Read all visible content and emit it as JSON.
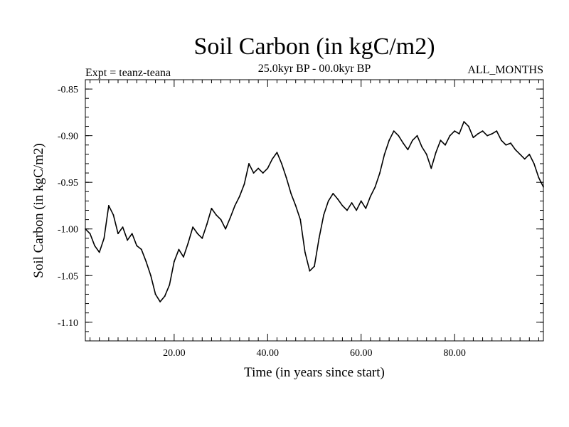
{
  "chart_data": {
    "type": "line",
    "title": "Soil Carbon (in kgC/m2)",
    "expt_label": "Expt = teanz-teana",
    "period_label": "25.0kyr BP - 00.0kyr BP",
    "months_label": "ALL_MONTHS",
    "xlabel": "Time (in years since start)",
    "ylabel": "Soil Carbon (in kgC/m2)",
    "xlim": [
      1,
      99
    ],
    "ylim": [
      -1.12,
      -0.84
    ],
    "x_ticks": [
      20,
      40,
      60,
      80
    ],
    "x_tick_labels": [
      "20.00",
      "40.00",
      "60.00",
      "80.00"
    ],
    "y_ticks": [
      -0.85,
      -0.9,
      -0.95,
      -1.0,
      -1.05,
      -1.1
    ],
    "y_tick_labels": [
      "-0.85",
      "-0.90",
      "-0.95",
      "-1.00",
      "-1.05",
      "-1.10"
    ],
    "series": [
      {
        "name": "Soil Carbon",
        "color": "#000000",
        "x": [
          1,
          2,
          3,
          4,
          5,
          6,
          7,
          8,
          9,
          10,
          11,
          12,
          13,
          14,
          15,
          16,
          17,
          18,
          19,
          20,
          21,
          22,
          23,
          24,
          25,
          26,
          27,
          28,
          29,
          30,
          31,
          32,
          33,
          34,
          35,
          36,
          37,
          38,
          39,
          40,
          41,
          42,
          43,
          44,
          45,
          46,
          47,
          48,
          49,
          50,
          51,
          52,
          53,
          54,
          55,
          56,
          57,
          58,
          59,
          60,
          61,
          62,
          63,
          64,
          65,
          66,
          67,
          68,
          69,
          70,
          71,
          72,
          73,
          74,
          75,
          76,
          77,
          78,
          79,
          80,
          81,
          82,
          83,
          84,
          85,
          86,
          87,
          88,
          89,
          90,
          91,
          92,
          93,
          94,
          95,
          96,
          97,
          98,
          99
        ],
        "values": [
          -1.0,
          -1.005,
          -1.018,
          -1.025,
          -1.01,
          -0.975,
          -0.985,
          -1.005,
          -0.998,
          -1.012,
          -1.005,
          -1.018,
          -1.022,
          -1.035,
          -1.05,
          -1.07,
          -1.078,
          -1.072,
          -1.06,
          -1.035,
          -1.022,
          -1.03,
          -1.015,
          -0.998,
          -1.005,
          -1.01,
          -0.995,
          -0.978,
          -0.985,
          -0.99,
          -1.0,
          -0.988,
          -0.975,
          -0.965,
          -0.952,
          -0.93,
          -0.94,
          -0.935,
          -0.94,
          -0.935,
          -0.925,
          -0.918,
          -0.93,
          -0.945,
          -0.962,
          -0.975,
          -0.99,
          -1.025,
          -1.045,
          -1.04,
          -1.01,
          -0.985,
          -0.97,
          -0.962,
          -0.968,
          -0.975,
          -0.98,
          -0.972,
          -0.98,
          -0.97,
          -0.978,
          -0.965,
          -0.955,
          -0.94,
          -0.92,
          -0.905,
          -0.895,
          -0.9,
          -0.908,
          -0.915,
          -0.905,
          -0.9,
          -0.912,
          -0.92,
          -0.935,
          -0.918,
          -0.905,
          -0.91,
          -0.9,
          -0.895,
          -0.898,
          -0.885,
          -0.89,
          -0.902,
          -0.898,
          -0.895,
          -0.9,
          -0.898,
          -0.895,
          -0.905,
          -0.91,
          -0.908,
          -0.915,
          -0.92,
          -0.925,
          -0.92,
          -0.93,
          -0.945,
          -0.955
        ]
      }
    ]
  }
}
